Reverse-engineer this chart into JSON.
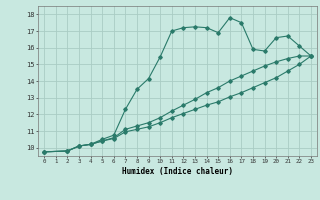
{
  "xlabel": "Humidex (Indice chaleur)",
  "bg_color": "#c8e8e0",
  "grid_color": "#aaccc4",
  "line_color": "#2a7a6a",
  "xlim": [
    -0.5,
    23.5
  ],
  "ylim": [
    9.5,
    18.5
  ],
  "xticks": [
    0,
    1,
    2,
    3,
    4,
    5,
    6,
    7,
    8,
    9,
    10,
    11,
    12,
    13,
    14,
    15,
    16,
    17,
    18,
    19,
    20,
    21,
    22,
    23
  ],
  "yticks": [
    10,
    11,
    12,
    13,
    14,
    15,
    16,
    17,
    18
  ],
  "series": [
    {
      "x": [
        0,
        2,
        3,
        4,
        5,
        6,
        7,
        8,
        9,
        10,
        11,
        12,
        13,
        14,
        15,
        16,
        17,
        18,
        19,
        20,
        21,
        22,
        23
      ],
      "y": [
        9.75,
        9.8,
        10.1,
        10.2,
        10.5,
        10.75,
        12.3,
        13.5,
        14.15,
        15.45,
        17.0,
        17.2,
        17.25,
        17.2,
        16.9,
        17.8,
        17.5,
        15.9,
        15.8,
        16.6,
        16.7,
        16.1,
        15.5
      ]
    },
    {
      "x": [
        0,
        2,
        3,
        4,
        5,
        6,
        7,
        8,
        9,
        10,
        11,
        12,
        13,
        14,
        15,
        16,
        17,
        18,
        19,
        20,
        21,
        22,
        23
      ],
      "y": [
        9.75,
        9.8,
        10.1,
        10.2,
        10.4,
        10.6,
        11.1,
        11.3,
        11.5,
        11.8,
        12.2,
        12.55,
        12.9,
        13.3,
        13.6,
        14.0,
        14.3,
        14.6,
        14.9,
        15.15,
        15.35,
        15.5,
        15.5
      ]
    },
    {
      "x": [
        0,
        2,
        3,
        4,
        5,
        6,
        7,
        8,
        9,
        10,
        11,
        12,
        13,
        14,
        15,
        16,
        17,
        18,
        19,
        20,
        21,
        22,
        23
      ],
      "y": [
        9.75,
        9.8,
        10.1,
        10.2,
        10.4,
        10.55,
        10.95,
        11.1,
        11.25,
        11.5,
        11.8,
        12.05,
        12.3,
        12.55,
        12.75,
        13.05,
        13.3,
        13.6,
        13.9,
        14.2,
        14.6,
        15.0,
        15.5
      ]
    }
  ]
}
